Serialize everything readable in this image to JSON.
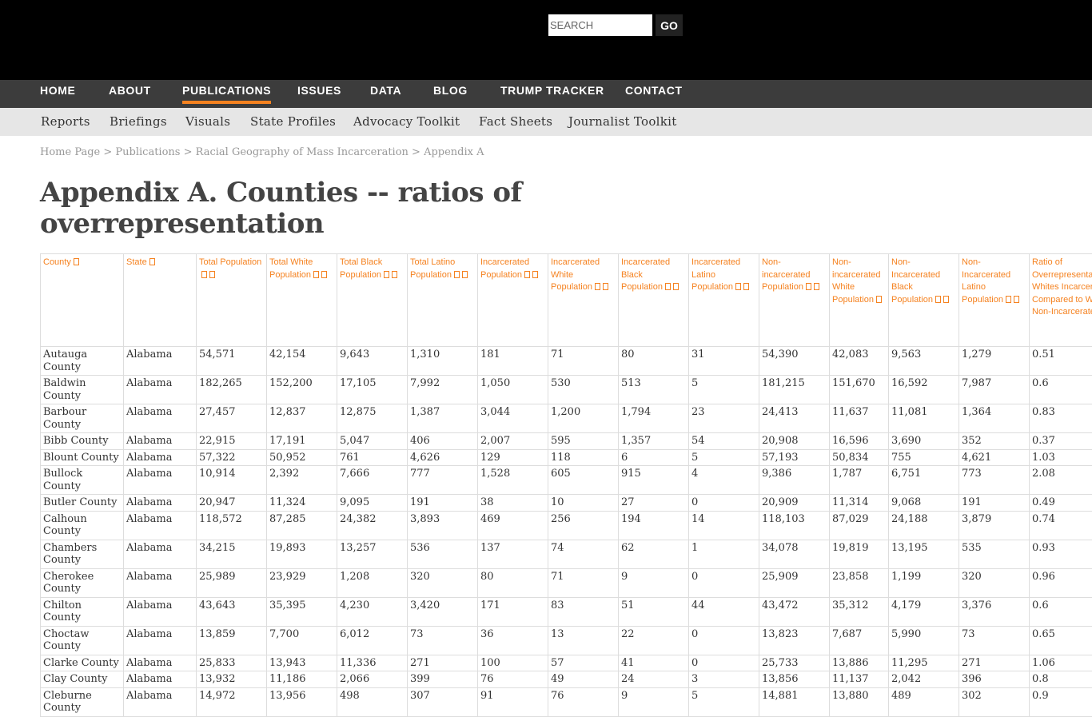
{
  "search": {
    "placeholder": "SEARCH",
    "go": "GO"
  },
  "nav": [
    "HOME",
    "ABOUT",
    "PUBLICATIONS",
    "ISSUES",
    "DATA",
    "BLOG",
    "TRUMP TRACKER",
    "CONTACT"
  ],
  "subnav": [
    "Reports",
    "Briefings",
    "Visuals",
    "State Profiles",
    "Advocacy Toolkit",
    "Fact Sheets",
    "Journalist Toolkit"
  ],
  "breadcrumb": [
    "Home Page",
    "Publications",
    "Racial Geography of Mass Incarceration",
    "Appendix A"
  ],
  "title": "Appendix A. Counties -- ratios of overrepresentation",
  "accent": "#f58220",
  "table": {
    "headers": [
      "County",
      "State",
      "Total Population",
      "Total White Population",
      "Total Black Population",
      "Total Latino Population",
      "Incarcerated Population",
      "Incarcerated White Population",
      "Incarcerated Black Population",
      "Incarcerated Latino Population",
      "Non-incarcerated Population",
      "Non-incarcerated White Population",
      "Non-Incarcerated Black Population",
      "Non-Incarcerated Latino Population",
      "Ratio of Overrepresentation of Whites Incarcerated Compared to Whites Non-Incarcerated"
    ],
    "rows": [
      [
        "Autauga County",
        "Alabama",
        "54,571",
        "42,154",
        "9,643",
        "1,310",
        "181",
        "71",
        "80",
        "31",
        "54,390",
        "42,083",
        "9,563",
        "1,279",
        "0.51"
      ],
      [
        "Baldwin County",
        "Alabama",
        "182,265",
        "152,200",
        "17,105",
        "7,992",
        "1,050",
        "530",
        "513",
        "5",
        "181,215",
        "151,670",
        "16,592",
        "7,987",
        "0.6"
      ],
      [
        "Barbour County",
        "Alabama",
        "27,457",
        "12,837",
        "12,875",
        "1,387",
        "3,044",
        "1,200",
        "1,794",
        "23",
        "24,413",
        "11,637",
        "11,081",
        "1,364",
        "0.83"
      ],
      [
        "Bibb County",
        "Alabama",
        "22,915",
        "17,191",
        "5,047",
        "406",
        "2,007",
        "595",
        "1,357",
        "54",
        "20,908",
        "16,596",
        "3,690",
        "352",
        "0.37"
      ],
      [
        "Blount County",
        "Alabama",
        "57,322",
        "50,952",
        "761",
        "4,626",
        "129",
        "118",
        "6",
        "5",
        "57,193",
        "50,834",
        "755",
        "4,621",
        "1.03"
      ],
      [
        "Bullock County",
        "Alabama",
        "10,914",
        "2,392",
        "7,666",
        "777",
        "1,528",
        "605",
        "915",
        "4",
        "9,386",
        "1,787",
        "6,751",
        "773",
        "2.08"
      ],
      [
        "Butler County",
        "Alabama",
        "20,947",
        "11,324",
        "9,095",
        "191",
        "38",
        "10",
        "27",
        "0",
        "20,909",
        "11,314",
        "9,068",
        "191",
        "0.49"
      ],
      [
        "Calhoun County",
        "Alabama",
        "118,572",
        "87,285",
        "24,382",
        "3,893",
        "469",
        "256",
        "194",
        "14",
        "118,103",
        "87,029",
        "24,188",
        "3,879",
        "0.74"
      ],
      [
        "Chambers County",
        "Alabama",
        "34,215",
        "19,893",
        "13,257",
        "536",
        "137",
        "74",
        "62",
        "1",
        "34,078",
        "19,819",
        "13,195",
        "535",
        "0.93"
      ],
      [
        "Cherokee County",
        "Alabama",
        "25,989",
        "23,929",
        "1,208",
        "320",
        "80",
        "71",
        "9",
        "0",
        "25,909",
        "23,858",
        "1,199",
        "320",
        "0.96"
      ],
      [
        "Chilton County",
        "Alabama",
        "43,643",
        "35,395",
        "4,230",
        "3,420",
        "171",
        "83",
        "51",
        "44",
        "43,472",
        "35,312",
        "4,179",
        "3,376",
        "0.6"
      ],
      [
        "Choctaw County",
        "Alabama",
        "13,859",
        "7,700",
        "6,012",
        "73",
        "36",
        "13",
        "22",
        "0",
        "13,823",
        "7,687",
        "5,990",
        "73",
        "0.65"
      ],
      [
        "Clarke County",
        "Alabama",
        "25,833",
        "13,943",
        "11,336",
        "271",
        "100",
        "57",
        "41",
        "0",
        "25,733",
        "13,886",
        "11,295",
        "271",
        "1.06"
      ],
      [
        "Clay County",
        "Alabama",
        "13,932",
        "11,186",
        "2,066",
        "399",
        "76",
        "49",
        "24",
        "3",
        "13,856",
        "11,137",
        "2,042",
        "396",
        "0.8"
      ],
      [
        "Cleburne County",
        "Alabama",
        "14,972",
        "13,956",
        "498",
        "307",
        "91",
        "76",
        "9",
        "5",
        "14,881",
        "13,880",
        "489",
        "302",
        "0.9"
      ]
    ]
  }
}
